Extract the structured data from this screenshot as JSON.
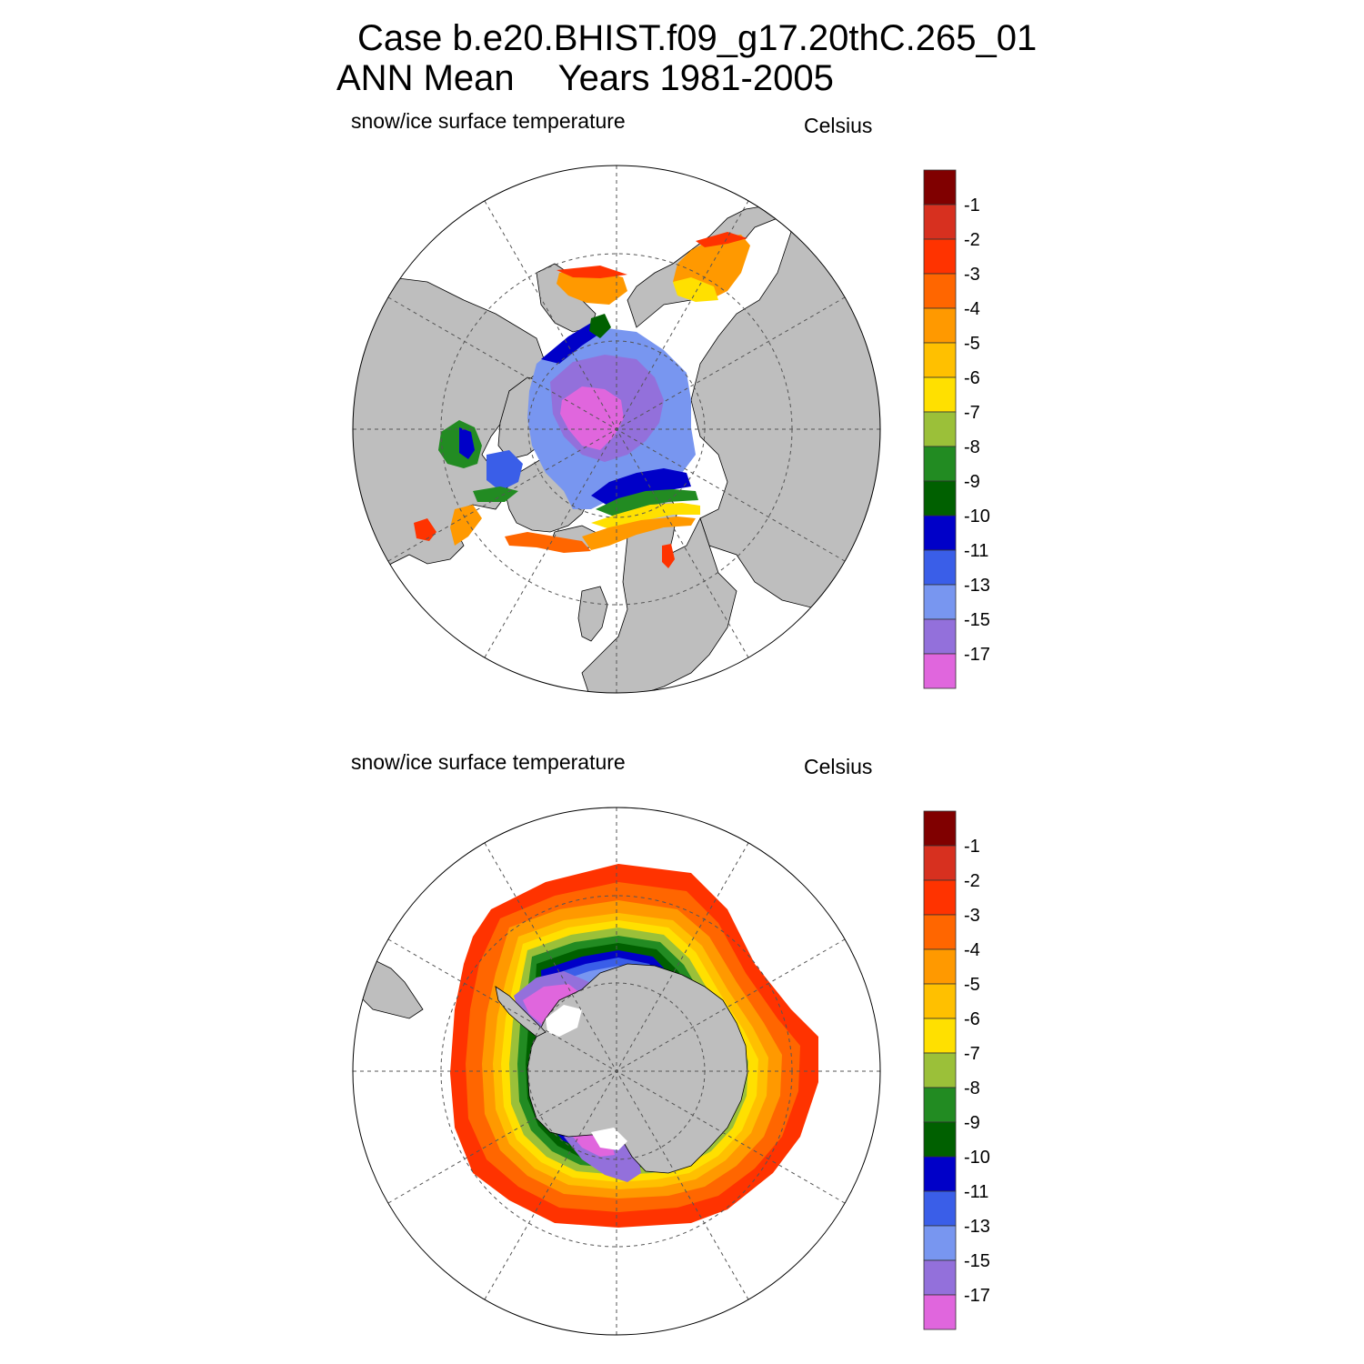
{
  "title": {
    "line1": "Case b.e20.BHIST.f09_g17.20thC.265_01",
    "season": "ANN Mean",
    "years": "Years 1981-2005"
  },
  "panels": [
    {
      "id": "nh",
      "variable": "snow/ice surface temperature",
      "units": "Celsius"
    },
    {
      "id": "sh",
      "variable": "snow/ice surface temperature",
      "units": "Celsius"
    }
  ],
  "colorbar": {
    "colors": [
      "#800000",
      "#d7301f",
      "#ff3300",
      "#ff6600",
      "#ff9900",
      "#ffc000",
      "#ffe000",
      "#9bc039",
      "#228b22",
      "#006000",
      "#0000c8",
      "#3a5ee8",
      "#7896f0",
      "#9370db",
      "#e066dd"
    ],
    "labels": [
      "-1",
      "-2",
      "-3",
      "-4",
      "-5",
      "-6",
      "-7",
      "-8",
      "-9",
      "-10",
      "-11",
      "-13",
      "-15",
      "-17"
    ]
  },
  "colors": {
    "land": "#bebebe",
    "ocean": "#ffffff",
    "grid": "#555555"
  }
}
